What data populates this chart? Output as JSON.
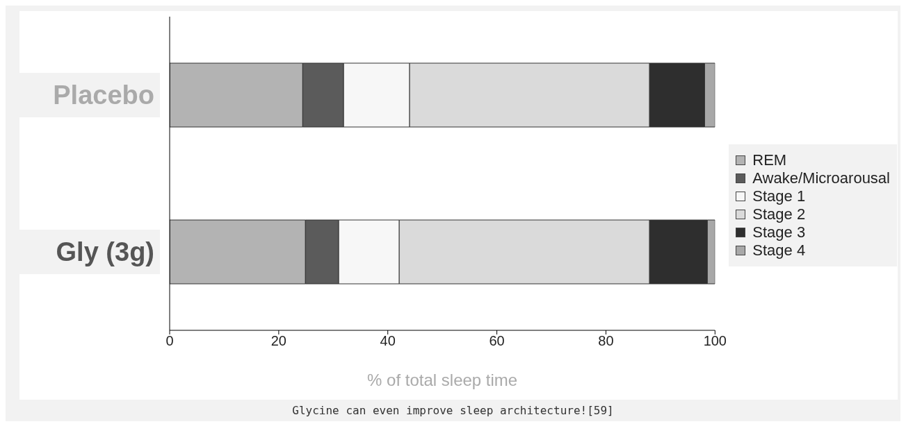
{
  "chart_data": {
    "type": "bar",
    "orientation": "horizontal",
    "stacked": true,
    "categories": [
      "Placebo",
      "Gly (3g)"
    ],
    "series": [
      {
        "name": "REM",
        "color": "#b3b3b3",
        "values": [
          24.4,
          24.9
        ]
      },
      {
        "name": "Awake/Microarousal",
        "color": "#5b5b5b",
        "values": [
          7.5,
          6.1
        ]
      },
      {
        "name": "Stage 1",
        "color": "#f7f7f7",
        "values": [
          12.1,
          11.1
        ]
      },
      {
        "name": "Stage 2",
        "color": "#dadada",
        "values": [
          44.0,
          45.9
        ]
      },
      {
        "name": "Stage 3",
        "color": "#2e2e2e",
        "values": [
          10.1,
          10.6
        ]
      },
      {
        "name": "Stage 4",
        "color": "#a8a8a8",
        "values": [
          1.9,
          1.4
        ]
      }
    ],
    "xlim": [
      0,
      100
    ],
    "xticks": [
      0,
      20,
      40,
      60,
      80,
      100
    ],
    "xlabel": "% of  total sleep time",
    "legend": "right",
    "grid": false,
    "annotations": [
      "Glycine can even improve sleep architecture![59]"
    ]
  }
}
